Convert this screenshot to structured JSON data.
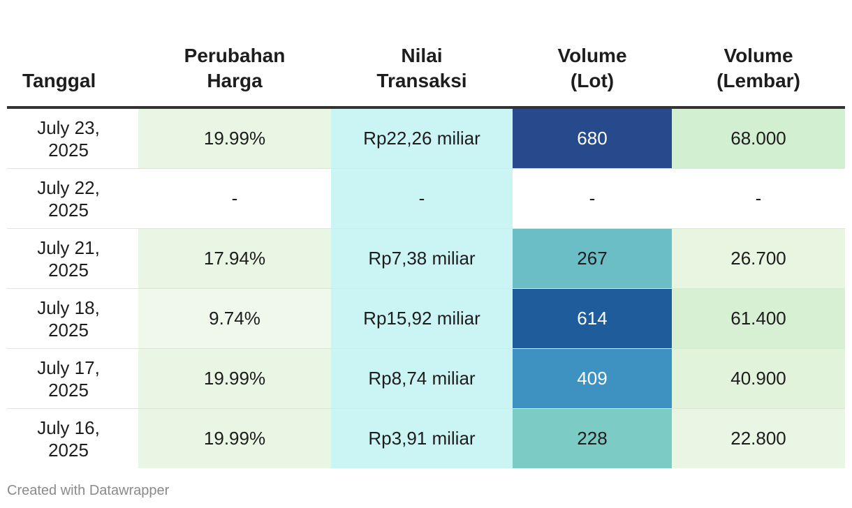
{
  "chart_data": {
    "type": "table",
    "columns": [
      "Tanggal",
      "Perubahan\nHarga",
      "Nilai\nTransaksi",
      "Volume\n(Lot)",
      "Volume\n(Lembar)"
    ],
    "rows": [
      {
        "date": "July 23,\n2025",
        "change": "19.99%",
        "value": "Rp22,26 miliar",
        "lot": "680",
        "lembar": "68.000"
      },
      {
        "date": "July 22,\n2025",
        "change": "-",
        "value": "-",
        "lot": "-",
        "lembar": "-"
      },
      {
        "date": "July 21,\n2025",
        "change": "17.94%",
        "value": "Rp7,38 miliar",
        "lot": "267",
        "lembar": "26.700"
      },
      {
        "date": "July 18,\n2025",
        "change": "9.74%",
        "value": "Rp15,92 miliar",
        "lot": "614",
        "lembar": "61.400"
      },
      {
        "date": "July 17,\n2025",
        "change": "19.99%",
        "value": "Rp8,74 miliar",
        "lot": "409",
        "lembar": "40.900"
      },
      {
        "date": "July 16,\n2025",
        "change": "19.99%",
        "value": "Rp3,91 miliar",
        "lot": "228",
        "lembar": "22.800"
      }
    ]
  },
  "colors": {
    "change_bg": [
      "#eaf6e4",
      "#ffffff",
      "#eaf6e4",
      "#f0f8ec",
      "#eaf6e4",
      "#eaf6e4"
    ],
    "value_bg": "#cbf5f5",
    "lot_bg": [
      "#264a8c",
      "#ffffff",
      "#6bbec6",
      "#1e5c9c",
      "#3d92c2",
      "#7ccbc4"
    ],
    "lot_text": [
      "#ffffff",
      "#1d1d1d",
      "#1d1d1d",
      "#ffffff",
      "#ffffff",
      "#1d1d1d"
    ],
    "lembar_bg": [
      "#d3efd1",
      "#ffffff",
      "#e8f5e1",
      "#d7f0d3",
      "#e2f3dc",
      "#eaf6e4"
    ]
  },
  "footer": "Created with Datawrapper"
}
